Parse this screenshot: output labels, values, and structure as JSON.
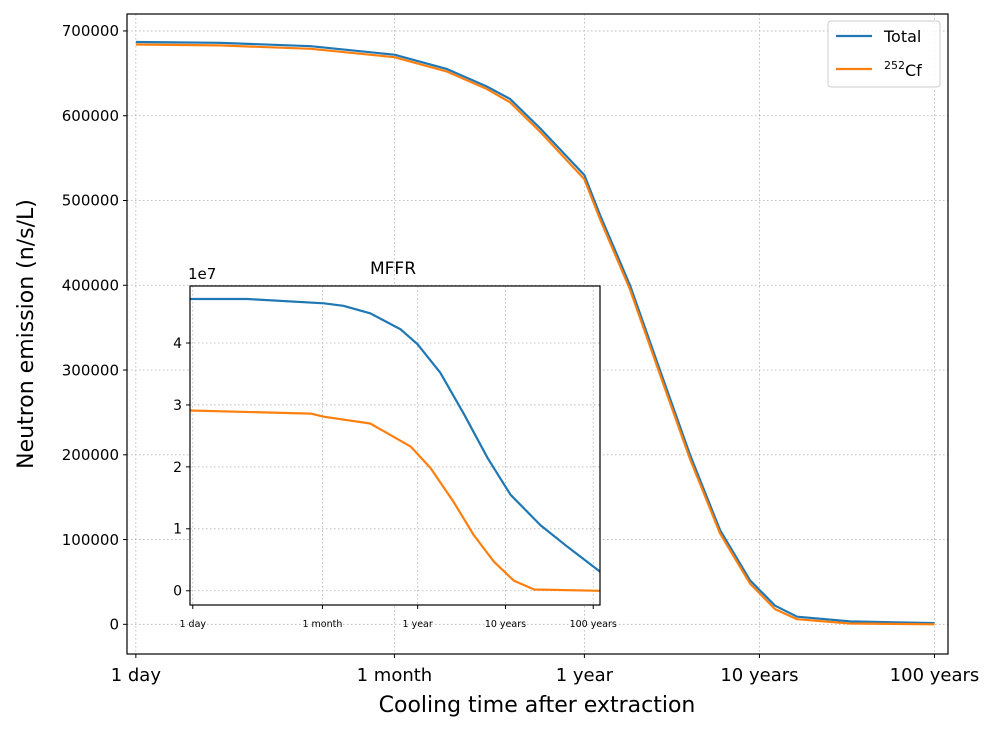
{
  "chart_data": [
    {
      "type": "line",
      "xlabel": "Cooling time after extraction",
      "ylabel": "Neutron emission (n/s/L)",
      "x_scale": "log",
      "x_unit": "days",
      "xlim": [
        0.89,
        43600
      ],
      "ylim": [
        -35000,
        720000
      ],
      "grid": true,
      "legend_position": "top-right",
      "x_ticks": [
        {
          "value": 1,
          "label": "1 day"
        },
        {
          "value": 30,
          "label": "1 month"
        },
        {
          "value": 365,
          "label": "1 year"
        },
        {
          "value": 3650,
          "label": "10 years"
        },
        {
          "value": 36500,
          "label": "100 years"
        }
      ],
      "y_ticks": [
        {
          "value": 0,
          "label": "0"
        },
        {
          "value": 100000,
          "label": "100000"
        },
        {
          "value": 200000,
          "label": "200000"
        },
        {
          "value": 300000,
          "label": "300000"
        },
        {
          "value": 400000,
          "label": "400000"
        },
        {
          "value": 500000,
          "label": "500000"
        },
        {
          "value": 600000,
          "label": "600000"
        },
        {
          "value": 700000,
          "label": "700000"
        }
      ],
      "series": [
        {
          "name": "Total",
          "color": "#1f77b4",
          "x": [
            1,
            3,
            10,
            30,
            60,
            100,
            137,
            204,
            365,
            448,
            665,
            986,
            1465,
            2175,
            3225,
            4480,
            5990,
            12000,
            36500
          ],
          "y": [
            687000,
            686000,
            682000,
            672000,
            655000,
            635000,
            620000,
            585000,
            530000,
            483000,
            400000,
            300000,
            200000,
            111000,
            52000,
            22000,
            9000,
            3500,
            1500
          ]
        },
        {
          "name": "252Cf",
          "name_superscript": "252",
          "name_base": "Cf",
          "color": "#ff7f0e",
          "x": [
            1,
            3,
            10,
            30,
            60,
            100,
            137,
            204,
            365,
            448,
            665,
            986,
            1465,
            2175,
            3225,
            4480,
            5990,
            12000,
            36500
          ],
          "y": [
            684000,
            683000,
            679000,
            669000,
            652000,
            632000,
            616000,
            581000,
            525000,
            478000,
            395000,
            295000,
            195000,
            107000,
            48000,
            18000,
            6000,
            1000,
            0
          ]
        }
      ]
    },
    {
      "type": "line",
      "title": "MFFR",
      "y_multiplier": "1e7",
      "x_scale": "log",
      "x_unit": "days",
      "xlim": [
        0.93,
        43600
      ],
      "ylim": [
        -0.23,
        4.92
      ],
      "grid": true,
      "x_ticks": [
        {
          "value": 1,
          "label": "1 day"
        },
        {
          "value": 30,
          "label": "1 month"
        },
        {
          "value": 365,
          "label": "1 year"
        },
        {
          "value": 3650,
          "label": "10 years"
        },
        {
          "value": 36500,
          "label": "100 years"
        }
      ],
      "y_ticks": [
        {
          "value": 0,
          "label": "0"
        },
        {
          "value": 1,
          "label": "1"
        },
        {
          "value": 2,
          "label": "2"
        },
        {
          "value": 3,
          "label": "3"
        },
        {
          "value": 4,
          "label": "4"
        }
      ],
      "series": [
        {
          "name": "Total",
          "color": "#1f77b4",
          "x": [
            0.93,
            4.2,
            31,
            52,
            105,
            234,
            363,
            660,
            1230,
            2290,
            4170,
            9120,
            18600,
            43600
          ],
          "y": [
            4.71,
            4.71,
            4.64,
            4.6,
            4.48,
            4.22,
            3.98,
            3.52,
            2.85,
            2.14,
            1.55,
            1.06,
            0.71,
            0.31
          ]
        },
        {
          "name": "252Cf",
          "color": "#ff7f0e",
          "x": [
            0.93,
            22,
            31,
            105,
            302,
            513,
            933,
            1585,
            2690,
            4570,
            7760,
            43600
          ],
          "y": [
            2.91,
            2.86,
            2.81,
            2.7,
            2.33,
            1.98,
            1.44,
            0.9,
            0.47,
            0.16,
            0.02,
            0.0
          ]
        }
      ]
    }
  ]
}
